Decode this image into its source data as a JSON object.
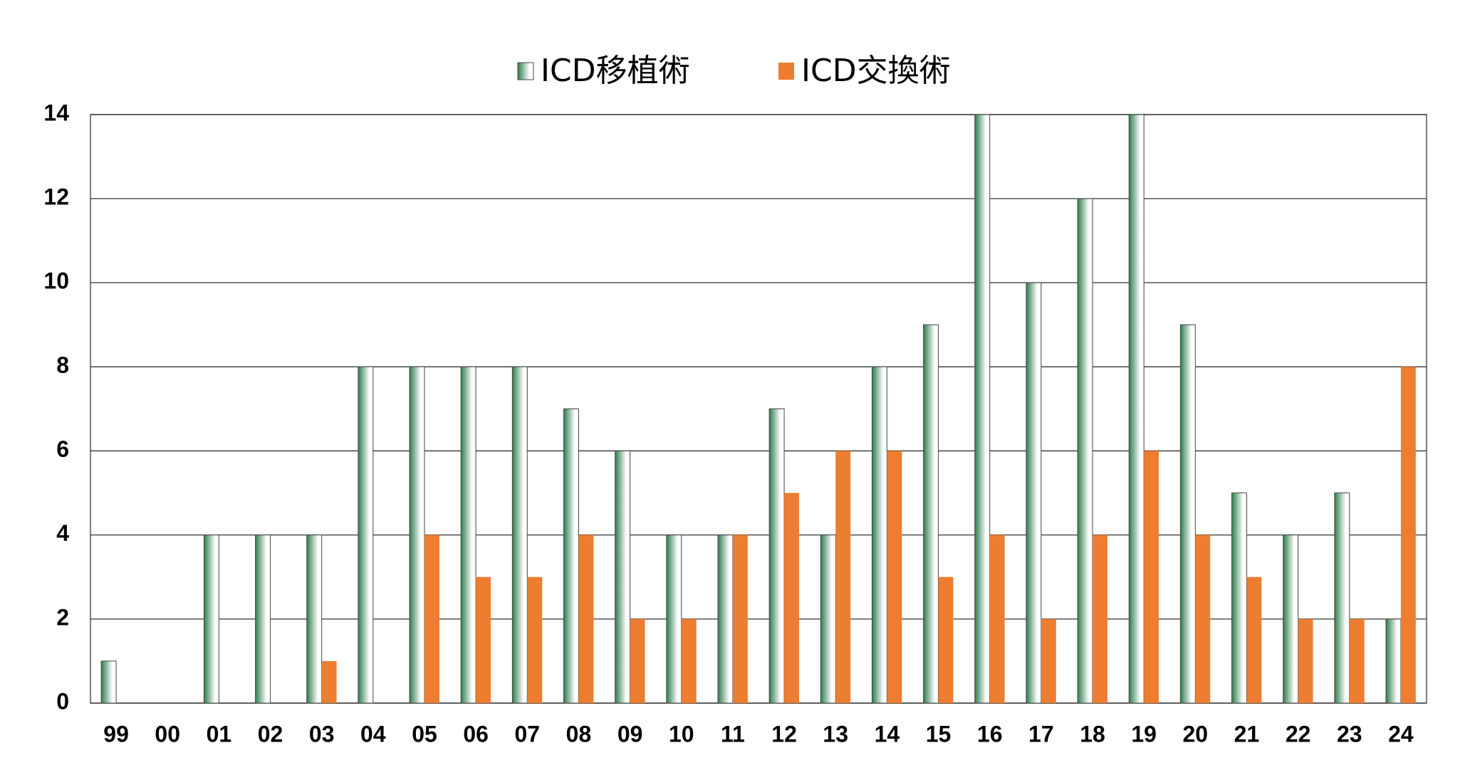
{
  "chart_data": {
    "type": "bar",
    "categories": [
      "99",
      "00",
      "01",
      "02",
      "03",
      "04",
      "05",
      "06",
      "07",
      "08",
      "09",
      "10",
      "11",
      "12",
      "13",
      "14",
      "15",
      "16",
      "17",
      "18",
      "19",
      "20",
      "21",
      "22",
      "23",
      "24"
    ],
    "series": [
      {
        "name": "ICD移植術",
        "color": "#2e7d4f",
        "values": [
          1,
          0,
          4,
          4,
          4,
          8,
          8,
          8,
          8,
          7,
          6,
          4,
          4,
          7,
          4,
          8,
          9,
          14,
          10,
          12,
          14,
          9,
          5,
          4,
          5,
          2
        ]
      },
      {
        "name": "ICD交換術",
        "color": "#ed7d31",
        "values": [
          0,
          0,
          0,
          0,
          1,
          0,
          4,
          3,
          3,
          4,
          2,
          2,
          4,
          5,
          6,
          6,
          3,
          4,
          2,
          4,
          6,
          4,
          3,
          2,
          2,
          8
        ]
      }
    ],
    "ylim": [
      0,
      14
    ],
    "yticks": [
      0,
      2,
      4,
      6,
      8,
      10,
      12,
      14
    ],
    "grid": true,
    "legend": "top"
  }
}
